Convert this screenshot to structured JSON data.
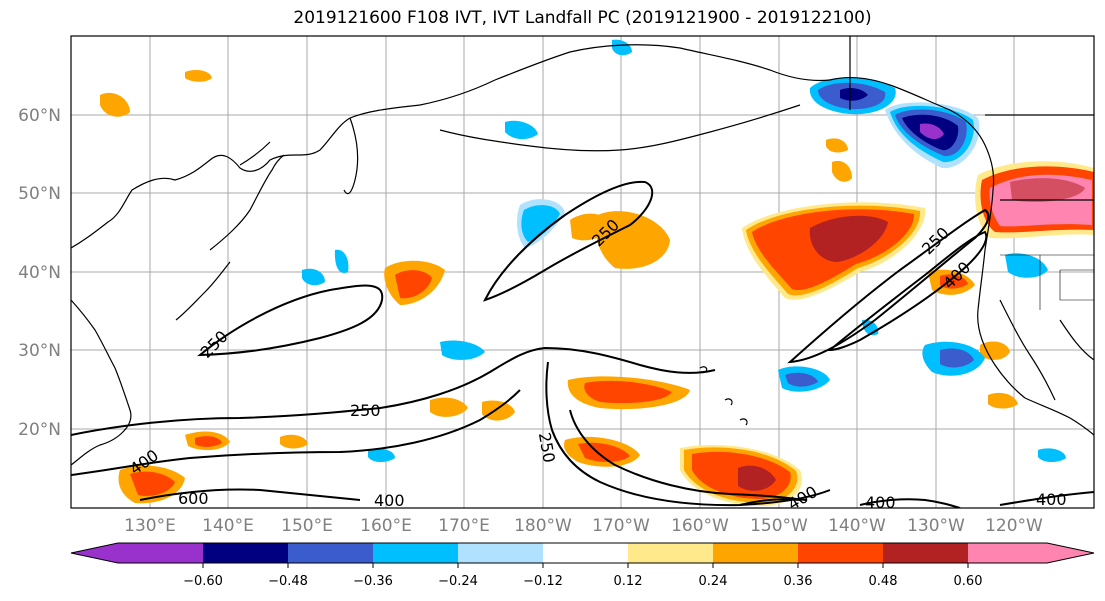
{
  "title": "2019121600 F108 IVT, IVT Landfall PC (2019121900 - 2019122100)",
  "latitudes": [
    "20°N",
    "30°N",
    "40°N",
    "50°N",
    "60°N"
  ],
  "longitudes": [
    "130°E",
    "140°E",
    "150°E",
    "160°E",
    "170°E",
    "180°W",
    "170°W",
    "160°W",
    "150°W",
    "140°W",
    "130°W",
    "120°W"
  ],
  "contour_labels": [
    "250",
    "250",
    "250",
    "250",
    "250",
    "400",
    "400",
    "400",
    "400",
    "400",
    "600",
    "400"
  ],
  "colorbar": {
    "ticks": [
      "−0.60",
      "−0.48",
      "−0.36",
      "−0.24",
      "−0.12",
      "0.12",
      "0.24",
      "0.36",
      "0.48",
      "0.60"
    ],
    "colors": {
      "under": "#9932cc",
      "c1": "#000080",
      "c2": "#3a5ccc",
      "c3": "#00bfff",
      "c4": "#b0e2ff",
      "c5": "#ffffff",
      "c6": "#ffe98a",
      "c7": "#ffa500",
      "c8": "#ff4500",
      "c9": "#b22222",
      "over": "#ff85b0"
    }
  }
}
